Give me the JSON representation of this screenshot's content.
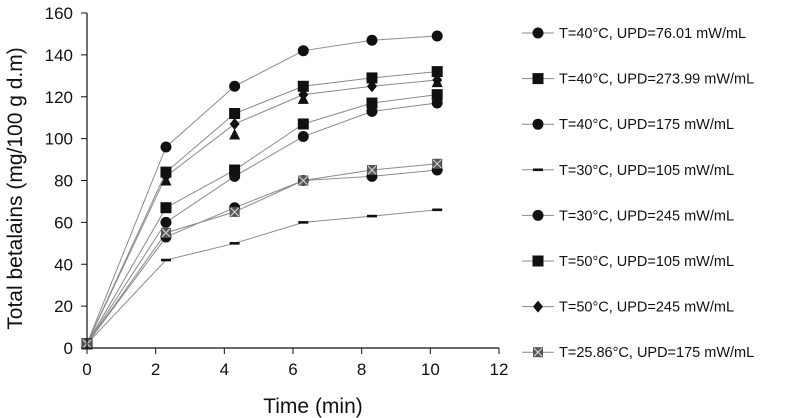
{
  "chart_data": {
    "type": "line",
    "title": "",
    "xlabel": "Time (min)",
    "ylabel": "Total betalains (mg/100 g d.m)",
    "xlim": [
      0,
      12
    ],
    "ylim": [
      0,
      160
    ],
    "xticks": [
      "0",
      "2",
      "4",
      "6",
      "8",
      "10",
      "12"
    ],
    "yticks": [
      "0",
      "20",
      "40",
      "60",
      "80",
      "100",
      "120",
      "140",
      "160"
    ],
    "grid": false,
    "legend_position": "right",
    "x": [
      0,
      2.3,
      4.3,
      6.3,
      8.3,
      10.2
    ],
    "series": [
      {
        "name": "T=40°C, UPD=76.01 mW/mL",
        "marker": "circle",
        "values": [
          2,
          96,
          125,
          142,
          147,
          149
        ]
      },
      {
        "name": "T=40°C, UPD=273.99 mW/mL",
        "marker": "square",
        "values": [
          2,
          84,
          112,
          125,
          129,
          132
        ]
      },
      {
        "name": "T=40°C, UPD=175 mW/mL",
        "marker": "circle",
        "values": [
          2,
          60,
          82,
          101,
          113,
          117
        ]
      },
      {
        "name": "T=30°C, UPD=105 mW/mL",
        "marker": "dash",
        "values": [
          2,
          42,
          50,
          60,
          63,
          66
        ]
      },
      {
        "name": "T=30°C, UPD=245 mW/mL",
        "marker": "circle",
        "values": [
          2,
          53,
          67,
          80,
          82,
          85
        ]
      },
      {
        "name": "T=50°C, UPD=105 mW/mL",
        "marker": "square",
        "values": [
          2,
          67,
          85,
          107,
          117,
          121
        ]
      },
      {
        "name": "T=50°C, UPD=245 mW/mL",
        "marker": "diamond",
        "values": [
          2,
          82,
          107,
          121,
          125,
          128
        ]
      },
      {
        "name": "T=25.86°C, UPD=175 mW/mL",
        "marker": "xsquare",
        "values": [
          2,
          55,
          65,
          80,
          85,
          88
        ]
      }
    ],
    "annotations": [
      {
        "text": "",
        "marker": "triangle",
        "x": 2.3,
        "y": 80
      },
      {
        "text": "",
        "marker": "triangle",
        "x": 4.3,
        "y": 102
      },
      {
        "text": "",
        "marker": "triangle",
        "x": 6.3,
        "y": 119
      },
      {
        "text": "",
        "marker": "triangle",
        "x": 10.2,
        "y": 127
      }
    ],
    "colors": {
      "line": "#8a8a8a",
      "marker": "#111111",
      "axis": "#111111",
      "xmarker": "#555555"
    }
  }
}
